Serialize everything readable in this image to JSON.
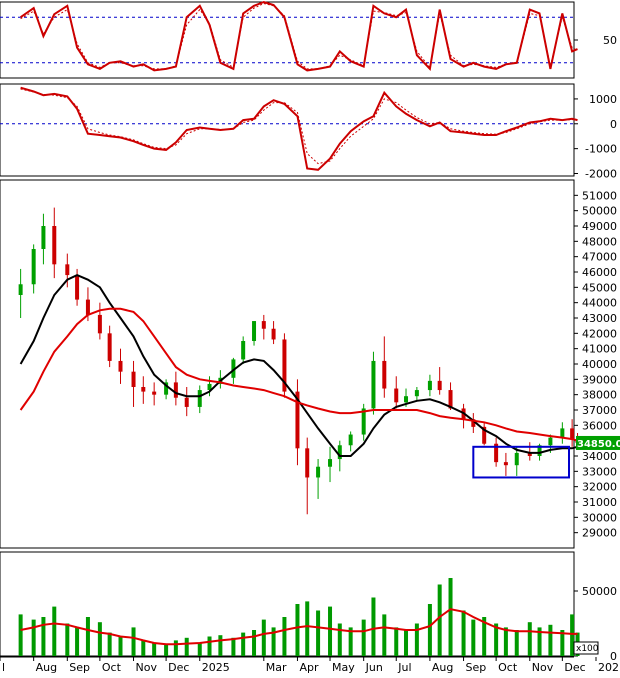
{
  "chart_data": [
    {
      "type": "line",
      "panel": "stochastic-oscillator",
      "ylim": [
        0,
        100
      ],
      "ytick_labels": [
        "50"
      ],
      "reference_levels": [
        20,
        80
      ],
      "x": [
        "2024-07-20",
        "2024-08-01",
        "2024-08-10",
        "2024-08-20",
        "2024-09-01",
        "2024-09-10",
        "2024-09-20",
        "2024-10-01",
        "2024-10-10",
        "2024-10-20",
        "2024-11-01",
        "2024-11-10",
        "2024-11-20",
        "2024-12-01",
        "2024-12-10",
        "2024-12-20",
        "2025-01-01",
        "2025-01-10",
        "2025-01-20",
        "2025-02-01",
        "2025-02-10",
        "2025-02-20",
        "2025-03-01",
        "2025-03-10",
        "2025-03-20",
        "2025-04-01",
        "2025-04-10",
        "2025-04-20",
        "2025-05-01",
        "2025-05-10",
        "2025-05-20",
        "2025-06-01",
        "2025-06-10",
        "2025-06-20",
        "2025-07-01",
        "2025-07-10",
        "2025-07-20",
        "2025-08-01",
        "2025-08-10",
        "2025-08-20",
        "2025-09-01",
        "2025-09-10",
        "2025-09-20",
        "2025-10-01",
        "2025-10-10",
        "2025-10-20",
        "2025-11-01",
        "2025-11-10",
        "2025-11-20",
        "2025-12-01",
        "2025-12-10",
        "2025-12-15"
      ],
      "series": [
        {
          "values": [
            80,
            92,
            55,
            84,
            95,
            40,
            18,
            12,
            20,
            22,
            15,
            18,
            10,
            12,
            15,
            80,
            95,
            70,
            20,
            12,
            85,
            95,
            100,
            96,
            80,
            18,
            10,
            12,
            15,
            35,
            22,
            15,
            95,
            85,
            80,
            90,
            30,
            12,
            90,
            25,
            15,
            20,
            15,
            12,
            18,
            20,
            90,
            85,
            12,
            85,
            35,
            38
          ]
        },
        {
          "values": [
            78,
            88,
            58,
            80,
            90,
            45,
            20,
            14,
            20,
            20,
            16,
            16,
            12,
            12,
            16,
            70,
            90,
            72,
            24,
            14,
            80,
            92,
            98,
            95,
            82,
            22,
            12,
            12,
            16,
            30,
            24,
            16,
            88,
            86,
            82,
            86,
            35,
            14,
            85,
            30,
            16,
            18,
            16,
            14,
            18,
            20,
            85,
            82,
            16,
            80,
            40,
            36
          ]
        }
      ]
    },
    {
      "type": "line",
      "panel": "macd",
      "ylim": [
        -2100,
        1600
      ],
      "ytick_labels": [
        "1000",
        "0",
        "-1000",
        "-2000"
      ],
      "reference_levels": [
        0
      ],
      "x": [
        "2024-07-20",
        "2024-08-01",
        "2024-08-10",
        "2024-08-20",
        "2024-09-01",
        "2024-09-10",
        "2024-09-20",
        "2024-10-01",
        "2024-10-10",
        "2024-10-20",
        "2024-11-01",
        "2024-11-10",
        "2024-11-20",
        "2024-12-01",
        "2024-12-10",
        "2024-12-20",
        "2025-01-01",
        "2025-01-10",
        "2025-01-20",
        "2025-02-01",
        "2025-02-10",
        "2025-02-20",
        "2025-03-01",
        "2025-03-10",
        "2025-03-20",
        "2025-04-01",
        "2025-04-10",
        "2025-04-20",
        "2025-05-01",
        "2025-05-10",
        "2025-05-20",
        "2025-06-01",
        "2025-06-10",
        "2025-06-20",
        "2025-07-01",
        "2025-07-10",
        "2025-07-20",
        "2025-08-01",
        "2025-08-10",
        "2025-08-20",
        "2025-09-01",
        "2025-09-10",
        "2025-09-20",
        "2025-10-01",
        "2025-10-10",
        "2025-10-20",
        "2025-11-01",
        "2025-11-10",
        "2025-11-20",
        "2025-12-01",
        "2025-12-10",
        "2025-12-15"
      ],
      "series": [
        {
          "values": [
            1450,
            1300,
            1150,
            1200,
            1100,
            600,
            -400,
            -450,
            -500,
            -550,
            -700,
            -850,
            -1000,
            -1050,
            -750,
            -250,
            -150,
            -200,
            -250,
            -200,
            150,
            200,
            700,
            950,
            800,
            300,
            -1800,
            -1850,
            -1400,
            -800,
            -300,
            100,
            300,
            1250,
            700,
            400,
            150,
            -100,
            50,
            -300,
            -350,
            -400,
            -450,
            -450,
            -300,
            -150,
            50,
            100,
            200,
            150,
            200,
            150
          ]
        },
        {
          "values": [
            1400,
            1280,
            1180,
            1150,
            1050,
            700,
            -200,
            -350,
            -450,
            -520,
            -650,
            -800,
            -950,
            -1000,
            -850,
            -400,
            -200,
            -200,
            -230,
            -200,
            50,
            150,
            550,
            850,
            850,
            450,
            -1200,
            -1600,
            -1500,
            -1000,
            -500,
            -100,
            200,
            1000,
            850,
            550,
            250,
            0,
            50,
            -200,
            -300,
            -350,
            -400,
            -420,
            -350,
            -200,
            0,
            80,
            150,
            150,
            170,
            160
          ]
        }
      ]
    },
    {
      "type": "candlestick",
      "panel": "price",
      "ylim": [
        28000,
        52000
      ],
      "ytick_labels": [
        "51000",
        "50000",
        "49000",
        "48000",
        "47000",
        "46000",
        "45000",
        "44000",
        "43000",
        "42000",
        "41000",
        "40000",
        "39000",
        "38000",
        "37000",
        "36000",
        "35000",
        "34000",
        "33000",
        "32000",
        "31000",
        "30000",
        "29000"
      ],
      "last_price_label": "34850.00",
      "x": [
        "2024-07-20",
        "2024-08-01",
        "2024-08-10",
        "2024-08-20",
        "2024-09-01",
        "2024-09-10",
        "2024-09-20",
        "2024-10-01",
        "2024-10-10",
        "2024-10-20",
        "2024-11-01",
        "2024-11-10",
        "2024-11-20",
        "2024-12-01",
        "2024-12-10",
        "2024-12-20",
        "2025-01-01",
        "2025-01-10",
        "2025-01-20",
        "2025-02-01",
        "2025-02-10",
        "2025-02-20",
        "2025-03-01",
        "2025-03-10",
        "2025-03-20",
        "2025-04-01",
        "2025-04-10",
        "2025-04-20",
        "2025-05-01",
        "2025-05-10",
        "2025-05-20",
        "2025-06-01",
        "2025-06-10",
        "2025-06-20",
        "2025-07-01",
        "2025-07-10",
        "2025-07-20",
        "2025-08-01",
        "2025-08-10",
        "2025-08-20",
        "2025-09-01",
        "2025-09-10",
        "2025-09-20",
        "2025-10-01",
        "2025-10-10",
        "2025-10-20",
        "2025-11-01",
        "2025-11-10",
        "2025-11-20",
        "2025-12-01",
        "2025-12-10",
        "2025-12-15"
      ],
      "open": [
        44500,
        45200,
        47500,
        49000,
        46500,
        45800,
        44200,
        43200,
        42000,
        40200,
        39500,
        38500,
        38200,
        38000,
        38800,
        37800,
        37200,
        38300,
        38700,
        39100,
        40300,
        41500,
        42800,
        42300,
        41600,
        38200,
        34500,
        32600,
        33300,
        33800,
        34700,
        35400,
        37100,
        40200,
        38400,
        37500,
        37900,
        38300,
        38900,
        38300,
        37100,
        36400,
        35900,
        34800,
        33600,
        33400,
        34200,
        34000,
        34700,
        35200,
        35800,
        35100
      ],
      "high": [
        46200,
        47800,
        49800,
        50200,
        47200,
        46200,
        45000,
        44000,
        42500,
        41000,
        40200,
        39200,
        38800,
        39000,
        39500,
        38500,
        38600,
        39200,
        39600,
        40400,
        41800,
        42800,
        43200,
        42800,
        42000,
        39000,
        35200,
        33800,
        34600,
        35000,
        35600,
        37400,
        40800,
        41800,
        39200,
        38400,
        38500,
        39300,
        39800,
        38800,
        37400,
        36800,
        36200,
        35200,
        34200,
        34600,
        34900,
        34800,
        35400,
        36200,
        36400,
        35500
      ],
      "low": [
        43000,
        44600,
        46500,
        45600,
        45000,
        43800,
        42800,
        41600,
        39800,
        38700,
        37200,
        37400,
        37300,
        37700,
        37300,
        36600,
        36800,
        37900,
        38400,
        38700,
        40000,
        41200,
        41600,
        41300,
        37800,
        33400,
        30200,
        31200,
        32300,
        33000,
        34300,
        35000,
        36700,
        37800,
        37100,
        37200,
        37600,
        37900,
        38000,
        37000,
        35800,
        35500,
        34700,
        33300,
        32700,
        32700,
        33700,
        33700,
        34200,
        34800,
        34600,
        34400
      ],
      "close": [
        45200,
        47500,
        49000,
        46500,
        45800,
        44200,
        43200,
        42000,
        40200,
        39500,
        38500,
        38200,
        38000,
        38800,
        37800,
        37200,
        38300,
        38700,
        39100,
        40300,
        41500,
        42800,
        42300,
        41600,
        38200,
        34500,
        32600,
        33300,
        33800,
        34700,
        35400,
        37100,
        40200,
        38400,
        37500,
        37900,
        38300,
        38900,
        38300,
        37100,
        36400,
        35900,
        34800,
        33600,
        33400,
        34200,
        34000,
        34700,
        35200,
        35800,
        35100,
        34850
      ],
      "series": [
        {
          "values": [
            40000,
            41500,
            43000,
            44500,
            45500,
            45800,
            45500,
            45000,
            44000,
            43000,
            41800,
            40500,
            39300,
            38600,
            38100,
            37900,
            37900,
            38200,
            38900,
            39600,
            40100,
            40300,
            40200,
            39600,
            38800,
            37700,
            36800,
            35800,
            34800,
            34000,
            34000,
            34800,
            35800,
            36700,
            37200,
            37400,
            37600,
            37700,
            37500,
            37200,
            36800,
            36300,
            35700,
            35300,
            34800,
            34400,
            34200,
            34200,
            34400,
            34500,
            34500,
            34600
          ]
        },
        {
          "values": [
            37000,
            38200,
            39500,
            40800,
            41800,
            42600,
            43200,
            43500,
            43600,
            43600,
            43400,
            42800,
            41800,
            40700,
            39800,
            39300,
            39000,
            38900,
            38800,
            38600,
            38500,
            38400,
            38300,
            38100,
            37900,
            37500,
            37300,
            37100,
            36900,
            36800,
            36800,
            36900,
            37000,
            37000,
            37000,
            37000,
            37000,
            36800,
            36600,
            36500,
            36400,
            36300,
            36200,
            36000,
            35800,
            35600,
            35500,
            35400,
            35300,
            35200,
            35100,
            35000
          ]
        }
      ],
      "annotation": {
        "shape": "rectangle",
        "y_range": [
          32600,
          34600
        ],
        "x_range": [
          "2025-09-10",
          "2025-12-20"
        ]
      }
    },
    {
      "type": "bar",
      "panel": "volume",
      "ylim": [
        0,
        80000
      ],
      "ytick_labels": [
        "50000",
        "0"
      ],
      "unit_label": "x100",
      "x": [
        "2024-07-20",
        "2024-08-01",
        "2024-08-10",
        "2024-08-20",
        "2024-09-01",
        "2024-09-10",
        "2024-09-20",
        "2024-10-01",
        "2024-10-10",
        "2024-10-20",
        "2024-11-01",
        "2024-11-10",
        "2024-11-20",
        "2024-12-01",
        "2024-12-10",
        "2024-12-20",
        "2025-01-01",
        "2025-01-10",
        "2025-01-20",
        "2025-02-01",
        "2025-02-10",
        "2025-02-20",
        "2025-03-01",
        "2025-03-10",
        "2025-03-20",
        "2025-04-01",
        "2025-04-10",
        "2025-04-20",
        "2025-05-01",
        "2025-05-10",
        "2025-05-20",
        "2025-06-01",
        "2025-06-10",
        "2025-06-20",
        "2025-07-01",
        "2025-07-10",
        "2025-07-20",
        "2025-08-01",
        "2025-08-10",
        "2025-08-20",
        "2025-09-01",
        "2025-09-10",
        "2025-09-20",
        "2025-10-01",
        "2025-10-10",
        "2025-10-20",
        "2025-11-01",
        "2025-11-10",
        "2025-11-20",
        "2025-12-01",
        "2025-12-10",
        "2025-12-15"
      ],
      "values": [
        32000,
        28000,
        30000,
        38000,
        25000,
        22000,
        30000,
        26000,
        18000,
        15000,
        22000,
        12000,
        10000,
        9000,
        12000,
        14000,
        10000,
        15000,
        16000,
        14000,
        18000,
        20000,
        28000,
        22000,
        30000,
        40000,
        42000,
        35000,
        38000,
        25000,
        22000,
        28000,
        45000,
        32000,
        22000,
        20000,
        25000,
        40000,
        55000,
        60000,
        35000,
        28000,
        30000,
        25000,
        22000,
        20000,
        26000,
        22000,
        24000,
        20000,
        32000,
        18000
      ],
      "series": [
        {
          "values": [
            20000,
            22000,
            24000,
            25000,
            24000,
            22000,
            20000,
            18000,
            17000,
            15000,
            14000,
            12000,
            10000,
            9000,
            9000,
            9500,
            10000,
            11000,
            12000,
            13000,
            14000,
            15000,
            17000,
            18000,
            20000,
            22000,
            23000,
            22000,
            21000,
            20000,
            19000,
            19000,
            21000,
            22000,
            21000,
            20000,
            20000,
            23000,
            30000,
            36000,
            34000,
            30000,
            26000,
            22000,
            20000,
            19000,
            19000,
            18500,
            18000,
            17500,
            17000,
            17000
          ]
        }
      ]
    }
  ],
  "x_axis": {
    "tick_labels": [
      "l",
      "Aug",
      "Sep",
      "Oct",
      "Nov",
      "Dec",
      "2025",
      "Mar",
      "Apr",
      "May",
      "Jun",
      "Jul",
      "Aug",
      "Sep",
      "Oct",
      "Nov",
      "Dec",
      "202"
    ],
    "tick_dates": [
      "2024-07-01",
      "2024-08-01",
      "2024-09-01",
      "2024-10-01",
      "2024-11-01",
      "2024-12-01",
      "2025-01-01",
      "2025-03-01",
      "2025-04-01",
      "2025-05-01",
      "2025-06-01",
      "2025-07-01",
      "2025-08-01",
      "2025-09-01",
      "2025-10-01",
      "2025-11-01",
      "2025-12-01",
      "2026-01-01"
    ]
  },
  "colors": {
    "ma_black": "#000000",
    "ma_red": "#e00000",
    "oscillator_red": "#cc0000",
    "ref_blue": "#0000cc",
    "candle_green": "#00a000",
    "candle_red": "#cc0000",
    "volume_green": "#009900",
    "annotation_box": "#0000cc",
    "last_price_bg": "#00a000"
  }
}
